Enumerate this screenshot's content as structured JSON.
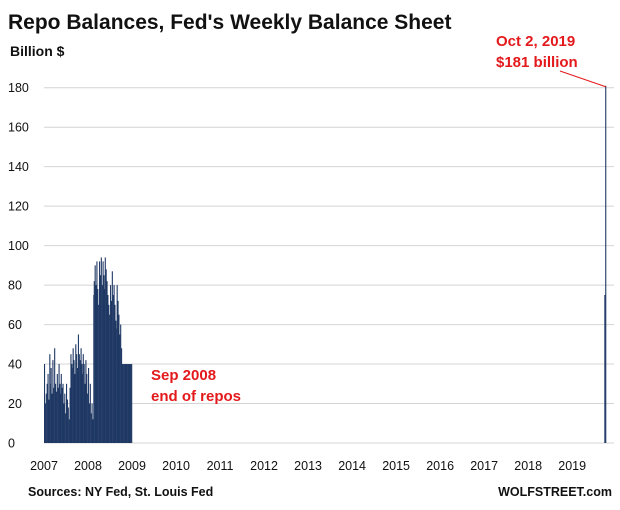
{
  "chart_data": {
    "type": "bar",
    "title": "Repo Balances, Fed's Weekly Balance Sheet",
    "ylabel": "Billion $",
    "xlabel": "",
    "ylim": [
      0,
      190
    ],
    "xlim": [
      2007.0,
      2019.95
    ],
    "yticks": [
      0,
      20,
      40,
      60,
      80,
      100,
      120,
      140,
      160,
      180
    ],
    "xticks": [
      "2007",
      "2008",
      "2009",
      "2010",
      "2011",
      "2012",
      "2013",
      "2014",
      "2015",
      "2016",
      "2017",
      "2018",
      "2019"
    ],
    "grid": true,
    "legend": "none",
    "bar_color": "#1f3864",
    "annotation_color": "#e3191c",
    "series": [
      {
        "x": [
          2007.0,
          2007.02,
          2007.04,
          2007.06,
          2007.08,
          2007.1,
          2007.12,
          2007.13,
          2007.15,
          2007.17,
          2007.19,
          2007.21,
          2007.23,
          2007.25,
          2007.27,
          2007.29,
          2007.31,
          2007.33,
          2007.35,
          2007.37,
          2007.38,
          2007.4,
          2007.42,
          2007.44,
          2007.46,
          2007.48,
          2007.5,
          2007.52,
          2007.54,
          2007.56,
          2007.58,
          2007.6,
          2007.62,
          2007.63,
          2007.65,
          2007.67,
          2007.69,
          2007.71,
          2007.73,
          2007.75,
          2007.77,
          2007.79,
          2007.81,
          2007.83,
          2007.85,
          2007.87,
          2007.88,
          2007.9,
          2007.92,
          2007.94,
          2007.96,
          2007.98,
          2008.0,
          2008.02,
          2008.04,
          2008.06,
          2008.08,
          2008.1,
          2008.12,
          2008.13,
          2008.15,
          2008.17,
          2008.19,
          2008.21,
          2008.23,
          2008.25,
          2008.27,
          2008.29,
          2008.31,
          2008.33,
          2008.35,
          2008.37,
          2008.38,
          2008.4,
          2008.42,
          2008.44,
          2008.46,
          2008.48,
          2008.5,
          2008.52,
          2008.54,
          2008.56,
          2008.58,
          2008.6,
          2008.62,
          2008.63,
          2008.65,
          2008.67,
          2008.69,
          2008.71,
          2008.73,
          2008.75,
          2008.77,
          2008.79,
          2008.81,
          2008.83,
          2008.85,
          2008.87,
          2008.88,
          2008.9,
          2008.92,
          2008.94,
          2008.96,
          2008.98,
          2019.5,
          2019.52,
          2019.54,
          2019.56,
          2019.58,
          2019.6,
          2019.62,
          2019.63,
          2019.65,
          2019.67,
          2019.69,
          2019.71,
          2019.73,
          2019.75
        ],
        "values": [
          40,
          20,
          25,
          30,
          35,
          22,
          45,
          30,
          38,
          25,
          42,
          28,
          48,
          30,
          26,
          35,
          28,
          40,
          30,
          25,
          35,
          28,
          30,
          20,
          25,
          15,
          30,
          22,
          18,
          12,
          28,
          45,
          40,
          38,
          48,
          42,
          35,
          50,
          45,
          38,
          55,
          45,
          42,
          48,
          40,
          35,
          45,
          40,
          30,
          42,
          35,
          25,
          38,
          20,
          30,
          15,
          20,
          12,
          75,
          82,
          90,
          80,
          92,
          78,
          70,
          92,
          85,
          94,
          80,
          92,
          85,
          78,
          94,
          88,
          82,
          75,
          70,
          65,
          80,
          72,
          87,
          75,
          80,
          70,
          62,
          58,
          80,
          72,
          65,
          55,
          60,
          48,
          40,
          40,
          40,
          40,
          40,
          40,
          40,
          40,
          40,
          40,
          40,
          40,
          0,
          0,
          0,
          0,
          0,
          0,
          0,
          0,
          0,
          0,
          0,
          0,
          75,
          181
        ]
      }
    ],
    "annotations": [
      {
        "id": "sep2008",
        "lines": [
          "Sep 2008",
          "end of repos"
        ]
      },
      {
        "id": "oct2019",
        "lines": [
          "Oct 2, 2019",
          "$181 billion"
        ]
      }
    ],
    "source": "Sources: NY Fed, St. Louis Fed",
    "credit": "WOLFSTREET.com"
  }
}
